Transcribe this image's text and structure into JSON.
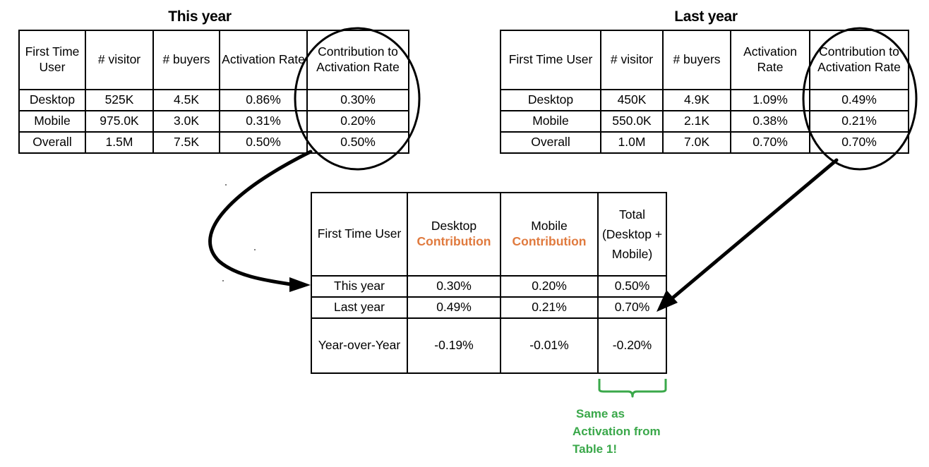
{
  "this_year": {
    "title": "This year",
    "headers": [
      "First Time User",
      "# visitor",
      "# buyers",
      "Activation Rate",
      "Contribution to Activation Rate"
    ],
    "rows": [
      [
        "Desktop",
        "525K",
        "4.5K",
        "0.86%",
        "0.30%"
      ],
      [
        "Mobile",
        "975.0K",
        "3.0K",
        "0.31%",
        "0.20%"
      ],
      [
        "Overall",
        "1.5M",
        "7.5K",
        "0.50%",
        "0.50%"
      ]
    ]
  },
  "last_year": {
    "title": "Last year",
    "headers": [
      "First Time User",
      "# visitor",
      "# buyers",
      "Activation Rate",
      "Contribution to Activation Rate"
    ],
    "rows": [
      [
        "Desktop",
        "450K",
        "4.9K",
        "1.09%",
        "0.49%"
      ],
      [
        "Mobile",
        "550.0K",
        "2.1K",
        "0.38%",
        "0.21%"
      ],
      [
        "Overall",
        "1.0M",
        "7.0K",
        "0.70%",
        "0.70%"
      ]
    ]
  },
  "summary": {
    "header_first": "First Time User",
    "header_desktop_top": "Desktop",
    "header_desktop_bottom": "Contribution",
    "header_mobile_top": "Mobile",
    "header_mobile_bottom": "Contribution",
    "header_total": "Total (Desktop + Mobile)",
    "rows": [
      [
        "This year",
        "0.30%",
        "0.20%",
        "0.50%"
      ],
      [
        "Last year",
        "0.49%",
        "0.21%",
        "0.70%"
      ],
      [
        "Year-over-Year",
        "-0.19%",
        "-0.01%",
        "-0.20%"
      ]
    ]
  },
  "note": {
    "lines": [
      "Same as",
      "Activation from",
      "Table 1!"
    ],
    "color": "#3aa84a"
  },
  "colors": {
    "accent_orange": "#e07a3e",
    "note_green": "#3aa84a"
  }
}
